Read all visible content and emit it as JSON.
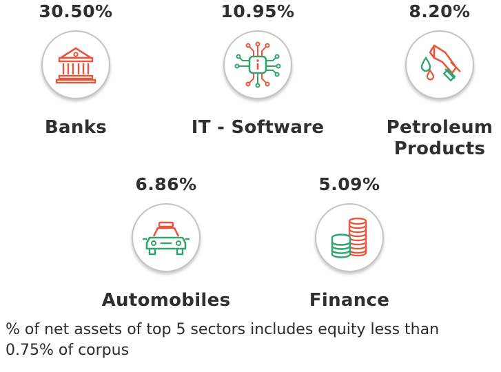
{
  "colors": {
    "red": "#e8553c",
    "green": "#2fa56c",
    "ring": "#c4c4c4",
    "text": "#2f2f2f"
  },
  "sectors": [
    {
      "percent": "30.50%",
      "name": "Banks",
      "icon": "bank-icon"
    },
    {
      "percent": "10.95%",
      "name": "IT - Software",
      "icon": "circuit-chip-icon"
    },
    {
      "percent": "8.20%",
      "name_lines": [
        "Petroleum",
        "Products"
      ],
      "icon": "fuel-nozzle-icon"
    },
    {
      "percent": "6.86%",
      "name": "Automobiles",
      "icon": "car-icon"
    },
    {
      "percent": "5.09%",
      "name": "Finance",
      "icon": "coin-stacks-icon"
    }
  ],
  "footnote": {
    "line1": "% of net assets of top 5 sectors includes equity less than",
    "line2": "0.75% of corpus"
  }
}
